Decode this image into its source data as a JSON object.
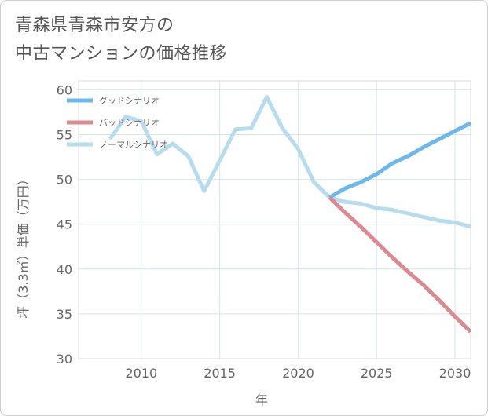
{
  "header": {
    "title_line1": "青森県青森市安方の",
    "title_line2": "中古マンションの価格推移"
  },
  "chart_data": {
    "type": "line",
    "xlabel": "年",
    "ylabel": "坪（3.3㎡）単価（万円）",
    "xlim": [
      2006,
      2031
    ],
    "ylim": [
      30,
      61
    ],
    "x_ticks": [
      2010,
      2015,
      2020,
      2025,
      2030
    ],
    "y_ticks": [
      30,
      35,
      40,
      45,
      50,
      55,
      60
    ],
    "grid": true,
    "legend_position": "top-left",
    "series": [
      {
        "name": "グッドシナリオ",
        "color": "#6cb8ea",
        "x": [
          2022,
          2023,
          2024,
          2025,
          2026,
          2027,
          2028,
          2029,
          2030,
          2031
        ],
        "values": [
          48.0,
          49.0,
          49.7,
          50.6,
          51.8,
          52.6,
          53.6,
          54.5,
          55.4,
          56.3
        ]
      },
      {
        "name": "バッドシナリオ",
        "color": "#dc8a90",
        "x": [
          2022,
          2023,
          2024,
          2025,
          2026,
          2027,
          2028,
          2029,
          2030,
          2031
        ],
        "values": [
          48.0,
          46.3,
          44.7,
          43.0,
          41.3,
          39.7,
          38.2,
          36.5,
          34.7,
          33.0
        ]
      },
      {
        "name": "ノーマルシナリオ",
        "color": "#b7dcee",
        "x": [
          2008,
          2009,
          2010,
          2011,
          2012,
          2013,
          2014,
          2015,
          2016,
          2017,
          2018,
          2019,
          2020,
          2021,
          2022,
          2023,
          2024,
          2025,
          2026,
          2027,
          2028,
          2029,
          2030,
          2031
        ],
        "values": [
          54.5,
          57.0,
          56.5,
          52.8,
          54.0,
          52.6,
          48.7,
          52.1,
          55.6,
          55.7,
          59.2,
          55.7,
          53.4,
          49.7,
          48.0,
          47.5,
          47.3,
          46.8,
          46.6,
          46.2,
          45.8,
          45.4,
          45.2,
          44.7
        ]
      }
    ]
  }
}
